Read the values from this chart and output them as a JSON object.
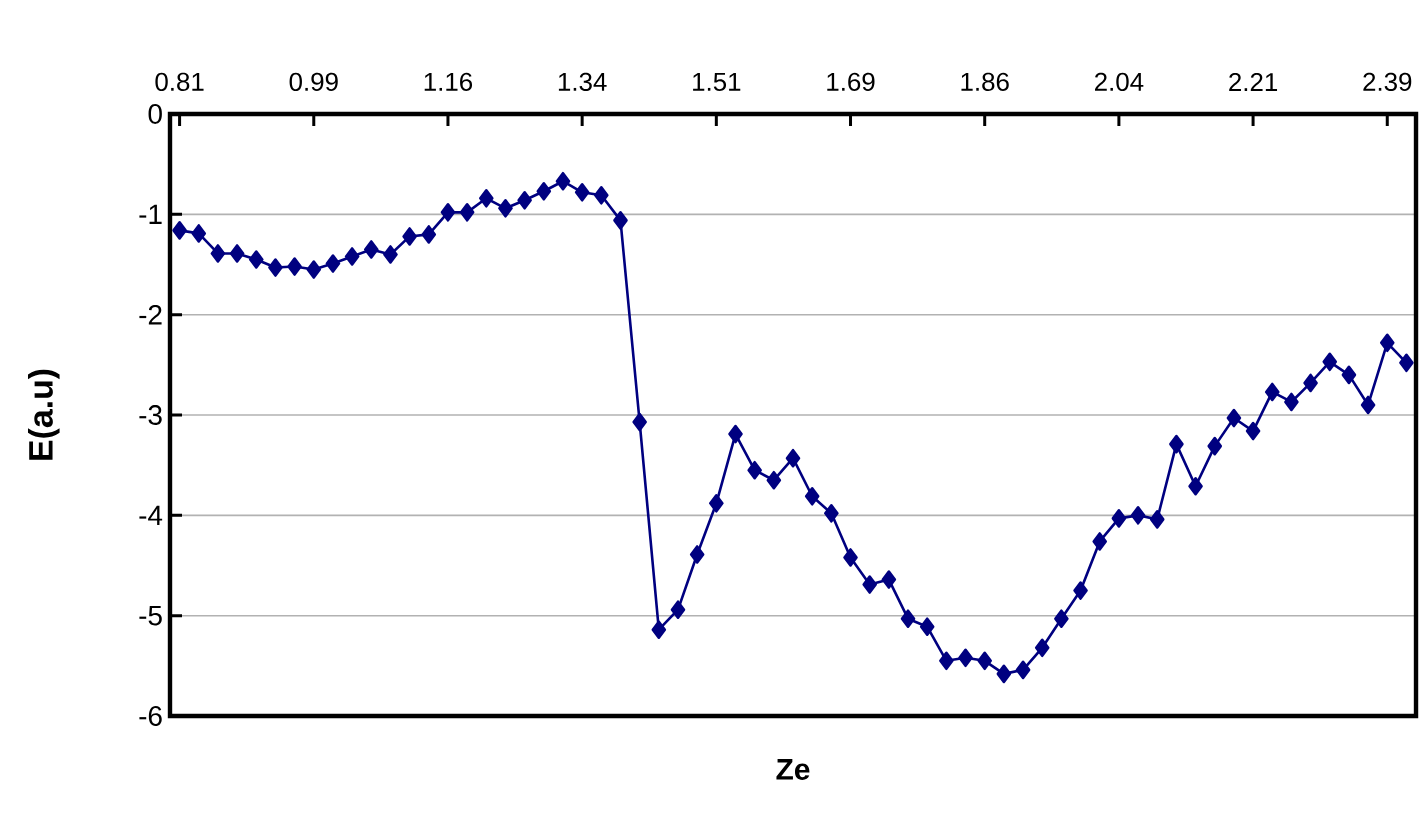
{
  "chart_data": {
    "type": "line",
    "xlabel": "Ze",
    "ylabel": "E(a.u)",
    "x": [
      0.81,
      0.835,
      0.86,
      0.885,
      0.91,
      0.935,
      0.96,
      0.985,
      1.01,
      1.035,
      1.06,
      1.085,
      1.11,
      1.135,
      1.16,
      1.185,
      1.21,
      1.235,
      1.26,
      1.285,
      1.31,
      1.335,
      1.36,
      1.385,
      1.41,
      1.435,
      1.46,
      1.485,
      1.51,
      1.535,
      1.56,
      1.585,
      1.61,
      1.635,
      1.66,
      1.685,
      1.71,
      1.735,
      1.76,
      1.785,
      1.81,
      1.835,
      1.86,
      1.885,
      1.91,
      1.935,
      1.96,
      1.985,
      2.01,
      2.035,
      2.06,
      2.085,
      2.11,
      2.135,
      2.16,
      2.185,
      2.21,
      2.235,
      2.26,
      2.285,
      2.31,
      2.335,
      2.36,
      2.385,
      2.41
    ],
    "series": [
      {
        "color": "#000080",
        "values": [
          -1.16,
          -1.19,
          -1.39,
          -1.39,
          -1.45,
          -1.53,
          -1.52,
          -1.55,
          -1.49,
          -1.42,
          -1.35,
          -1.4,
          -1.22,
          -1.2,
          -0.98,
          -0.98,
          -0.84,
          -0.94,
          -0.86,
          -0.77,
          -0.67,
          -0.78,
          -0.81,
          -1.06,
          -3.07,
          -5.14,
          -4.94,
          -4.39,
          -3.88,
          -3.19,
          -3.55,
          -3.65,
          -3.43,
          -3.81,
          -3.98,
          -4.42,
          -4.69,
          -4.64,
          -5.03,
          -5.11,
          -5.45,
          -5.42,
          -5.45,
          -5.58,
          -5.54,
          -5.32,
          -5.03,
          -4.75,
          -4.26,
          -4.03,
          -4.0,
          -4.04,
          -3.29,
          -3.71,
          -3.31,
          -3.03,
          -3.16,
          -2.77,
          -2.87,
          -2.68,
          -2.47,
          -2.6,
          -2.9,
          -2.28,
          -2.48
        ]
      }
    ],
    "xlim": [
      0.7975,
      2.4225
    ],
    "xticks": [
      0.81,
      {
        "value": 0.985,
        "label": "0.99"
      },
      1.16,
      {
        "value": 1.335,
        "label": "1.34"
      },
      1.51,
      {
        "value": 1.685,
        "label": "1.69"
      },
      1.86,
      {
        "value": 2.035,
        "label": "2.04"
      },
      2.21,
      {
        "value": 2.385,
        "label": "2.39"
      }
    ],
    "ylim": [
      -6,
      0
    ],
    "yticks": [
      -6,
      -5,
      -4,
      -3,
      -2,
      -1,
      0
    ],
    "grid": "y",
    "marker": "diamond",
    "line_style": "solid"
  }
}
